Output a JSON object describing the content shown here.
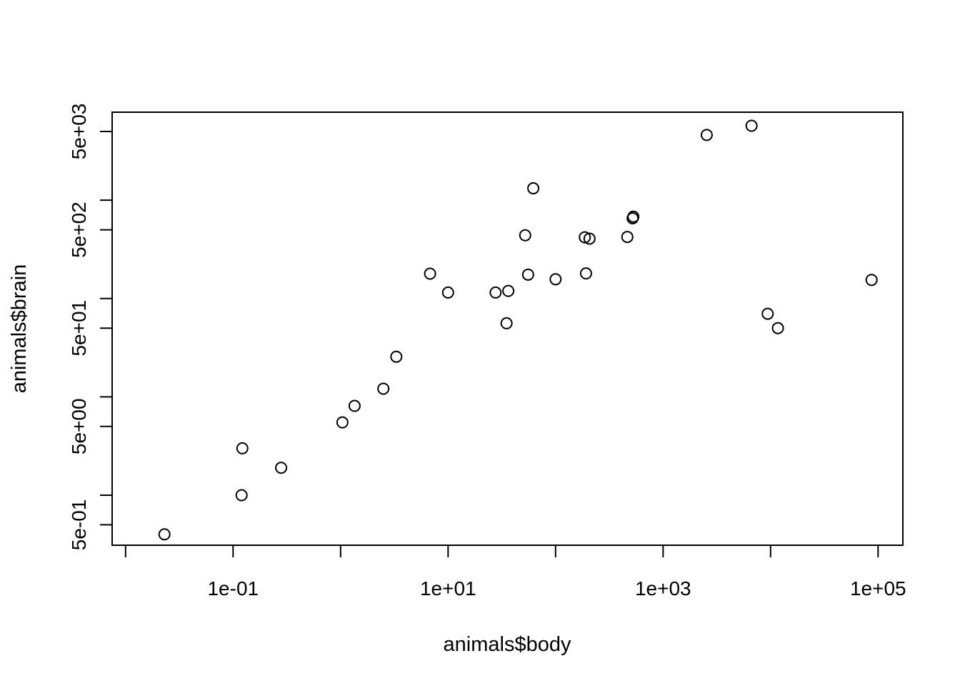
{
  "chart_data": {
    "type": "scatter",
    "title": "",
    "xlabel": "animals$body",
    "ylabel": "animals$brain",
    "xscale": "log",
    "yscale": "log",
    "xlim": [
      0.0075,
      170000
    ],
    "ylim": [
      0.31,
      7850
    ],
    "grid": false,
    "legend": "none",
    "x_ticks": [
      {
        "value": 0.01,
        "label": ""
      },
      {
        "value": 0.1,
        "label": "1e-01"
      },
      {
        "value": 1,
        "label": ""
      },
      {
        "value": 10,
        "label": "1e+01"
      },
      {
        "value": 100,
        "label": ""
      },
      {
        "value": 1000,
        "label": "1e+03"
      },
      {
        "value": 10000,
        "label": ""
      },
      {
        "value": 100000,
        "label": "1e+05"
      }
    ],
    "y_ticks": [
      {
        "value": 0.5,
        "label": "5e-01"
      },
      {
        "value": 1,
        "label": ""
      },
      {
        "value": 5,
        "label": "5e+00"
      },
      {
        "value": 10,
        "label": ""
      },
      {
        "value": 50,
        "label": "5e+01"
      },
      {
        "value": 100,
        "label": ""
      },
      {
        "value": 500,
        "label": "5e+02"
      },
      {
        "value": 1000,
        "label": ""
      },
      {
        "value": 5000,
        "label": "5e+03"
      }
    ],
    "points": [
      {
        "x": 1.35,
        "y": 8.1
      },
      {
        "x": 465,
        "y": 423
      },
      {
        "x": 36.33,
        "y": 119.5
      },
      {
        "x": 27.66,
        "y": 115
      },
      {
        "x": 1.04,
        "y": 5.5
      },
      {
        "x": 11700,
        "y": 50
      },
      {
        "x": 2547,
        "y": 4603
      },
      {
        "x": 187.1,
        "y": 419
      },
      {
        "x": 521,
        "y": 655
      },
      {
        "x": 10,
        "y": 115
      },
      {
        "x": 3.3,
        "y": 25.6
      },
      {
        "x": 529,
        "y": 680
      },
      {
        "x": 207,
        "y": 406
      },
      {
        "x": 62,
        "y": 1320
      },
      {
        "x": 6654,
        "y": 5712
      },
      {
        "x": 9400,
        "y": 70
      },
      {
        "x": 6.8,
        "y": 179
      },
      {
        "x": 35,
        "y": 56
      },
      {
        "x": 0.12,
        "y": 1
      },
      {
        "x": 0.023,
        "y": 0.4
      },
      {
        "x": 2.5,
        "y": 12.1
      },
      {
        "x": 55.5,
        "y": 175
      },
      {
        "x": 100,
        "y": 157
      },
      {
        "x": 52.16,
        "y": 440
      },
      {
        "x": 0.28,
        "y": 1.9
      },
      {
        "x": 87000,
        "y": 154.5
      },
      {
        "x": 0.122,
        "y": 3
      },
      {
        "x": 192,
        "y": 180
      }
    ]
  }
}
